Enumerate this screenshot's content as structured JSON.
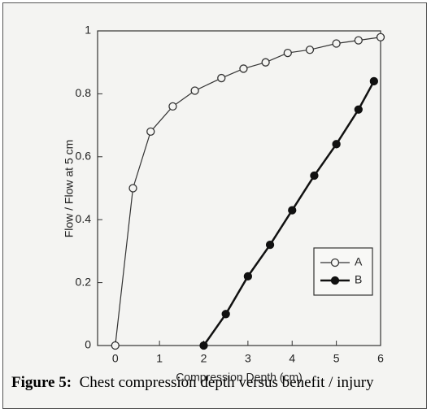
{
  "chart_data": {
    "type": "line",
    "x_label": "Compression Depth (cm)",
    "y_label": "Flow / Flow at 5 cm",
    "xlim": [
      -0.4,
      6
    ],
    "xticks": [
      0,
      1,
      2,
      3,
      4,
      5,
      6
    ],
    "ylim": [
      0,
      1
    ],
    "yticks": [
      0,
      0.2,
      0.4,
      0.6,
      0.8,
      1
    ],
    "legend": "lower right",
    "series": [
      {
        "name": "A",
        "color": "#333333",
        "marker": "open-circle",
        "x": [
          0,
          0.4,
          0.8,
          1.3,
          1.8,
          2.4,
          2.9,
          3.4,
          3.9,
          4.4,
          5,
          5.5,
          6
        ],
        "values": [
          0,
          0.5,
          0.68,
          0.76,
          0.81,
          0.85,
          0.88,
          0.9,
          0.93,
          0.94,
          0.96,
          0.97,
          0.98
        ]
      },
      {
        "name": "B",
        "color": "#111111",
        "marker": "filled-circle",
        "x": [
          2,
          2.5,
          3,
          3.5,
          4,
          4.5,
          5,
          5.5,
          5.85
        ],
        "values": [
          0,
          0.1,
          0.22,
          0.32,
          0.43,
          0.54,
          0.64,
          0.75,
          0.84
        ]
      }
    ]
  },
  "caption": {
    "label": "Figure 5:",
    "text": "Chest compression depth versus benefit / injury"
  }
}
